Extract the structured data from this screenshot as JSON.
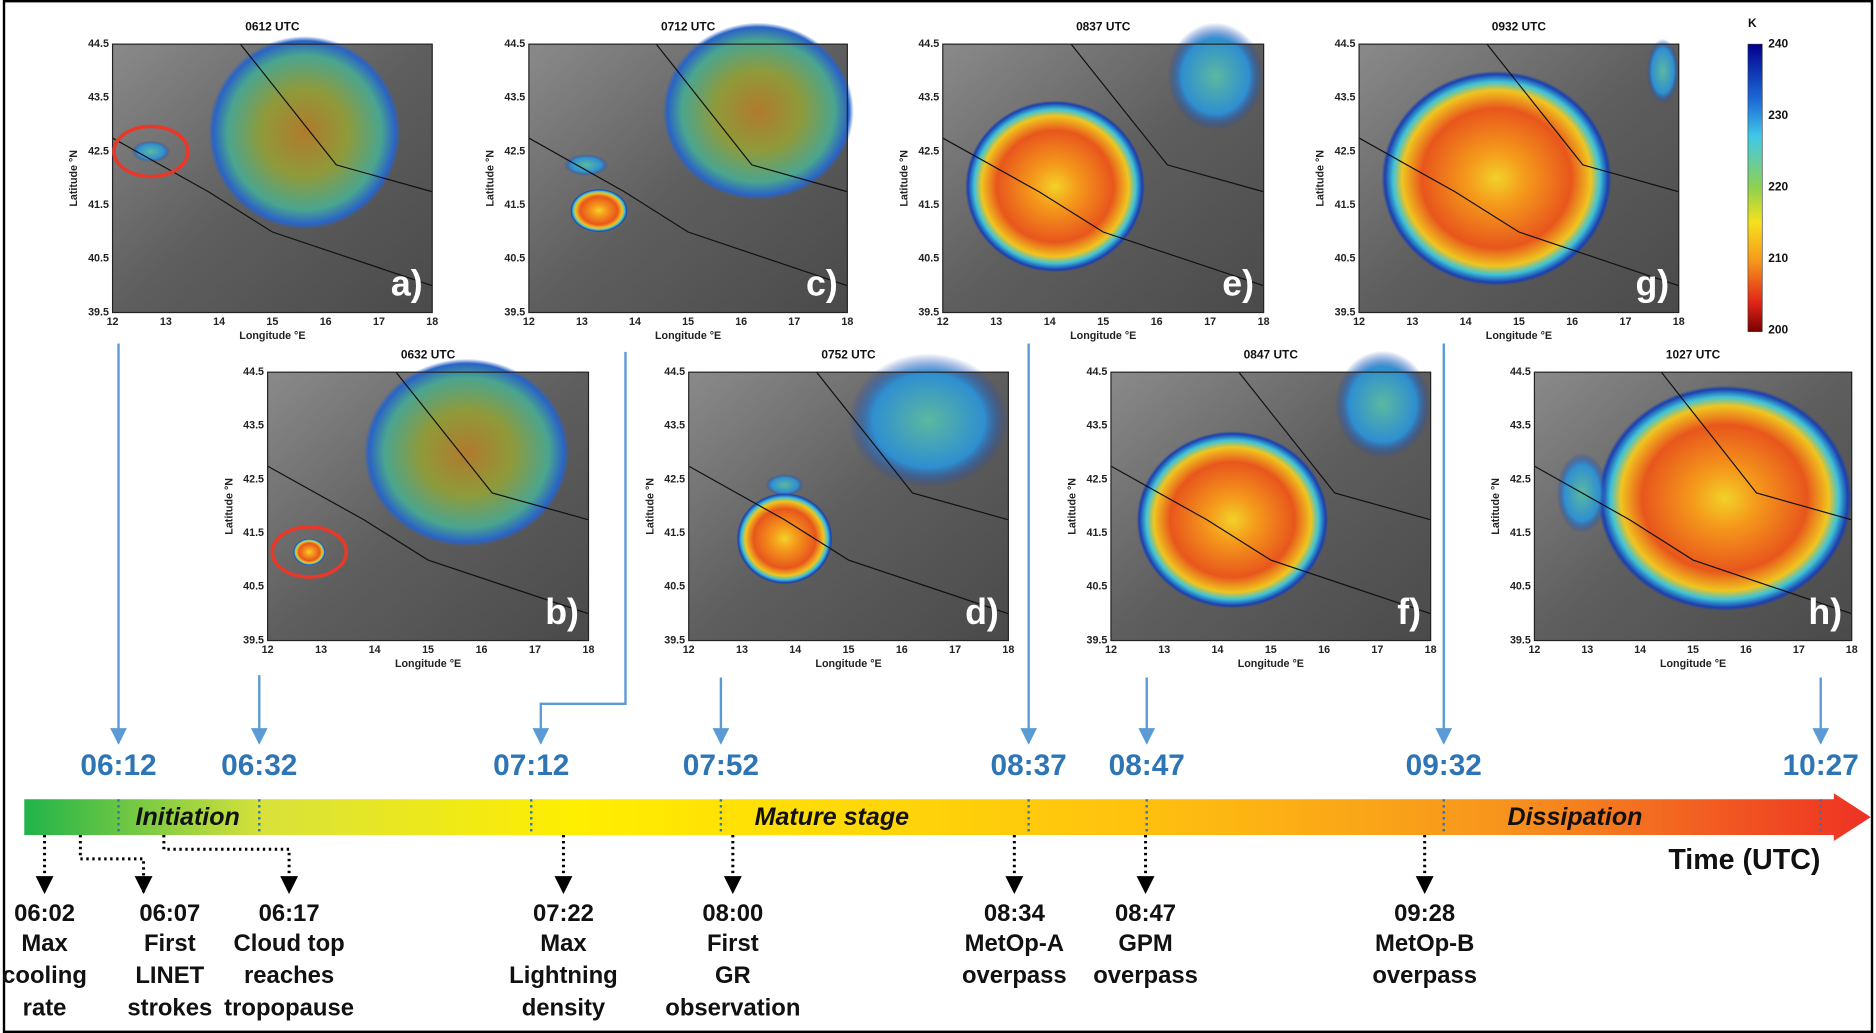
{
  "panels": [
    {
      "title": "0612 UTC",
      "letter": "a)"
    },
    {
      "title": "0632 UTC",
      "letter": "b)"
    },
    {
      "title": "0712 UTC",
      "letter": "c)"
    },
    {
      "title": "0752 UTC",
      "letter": "d)"
    },
    {
      "title": "0837 UTC",
      "letter": "e)"
    },
    {
      "title": "0847 UTC",
      "letter": "f)"
    },
    {
      "title": "0932 UTC",
      "letter": "g)"
    },
    {
      "title": "1027 UTC",
      "letter": "h)"
    }
  ],
  "panel_axes": {
    "xlabel": "Longitude °E",
    "ylabel": "Latitude °N",
    "xticks": [
      "12",
      "13",
      "14",
      "15",
      "16",
      "17",
      "18"
    ],
    "yticks": [
      "44.5",
      "43.5",
      "42.5",
      "41.5",
      "40.5",
      "39.5"
    ]
  },
  "colorbar": {
    "unit": "K",
    "ticks": [
      "240",
      "230",
      "220",
      "210",
      "200"
    ]
  },
  "timeline": {
    "times": [
      "06:12",
      "06:32",
      "07:12",
      "07:52",
      "08:37",
      "08:47",
      "09:32",
      "10:27"
    ],
    "stages": [
      "Initiation",
      "Mature stage",
      "Dissipation"
    ],
    "axis_label": "Time (UTC)"
  },
  "events": [
    {
      "time": "06:02",
      "lines": [
        "Max",
        "cooling",
        "rate"
      ]
    },
    {
      "time": "06:07",
      "lines": [
        "First",
        "LINET",
        "strokes"
      ]
    },
    {
      "time": "06:17",
      "lines": [
        "Cloud top",
        "reaches",
        "tropopause"
      ]
    },
    {
      "time": "07:22",
      "lines": [
        "Max",
        "Lightning",
        "density"
      ]
    },
    {
      "time": "08:00",
      "lines": [
        "First",
        "GR",
        "observation"
      ]
    },
    {
      "time": "08:34",
      "lines": [
        "MetOp-A",
        "overpass"
      ]
    },
    {
      "time": "08:47",
      "lines": [
        "GPM",
        "overpass"
      ]
    },
    {
      "time": "09:28",
      "lines": [
        "MetOp-B",
        "overpass"
      ]
    }
  ]
}
